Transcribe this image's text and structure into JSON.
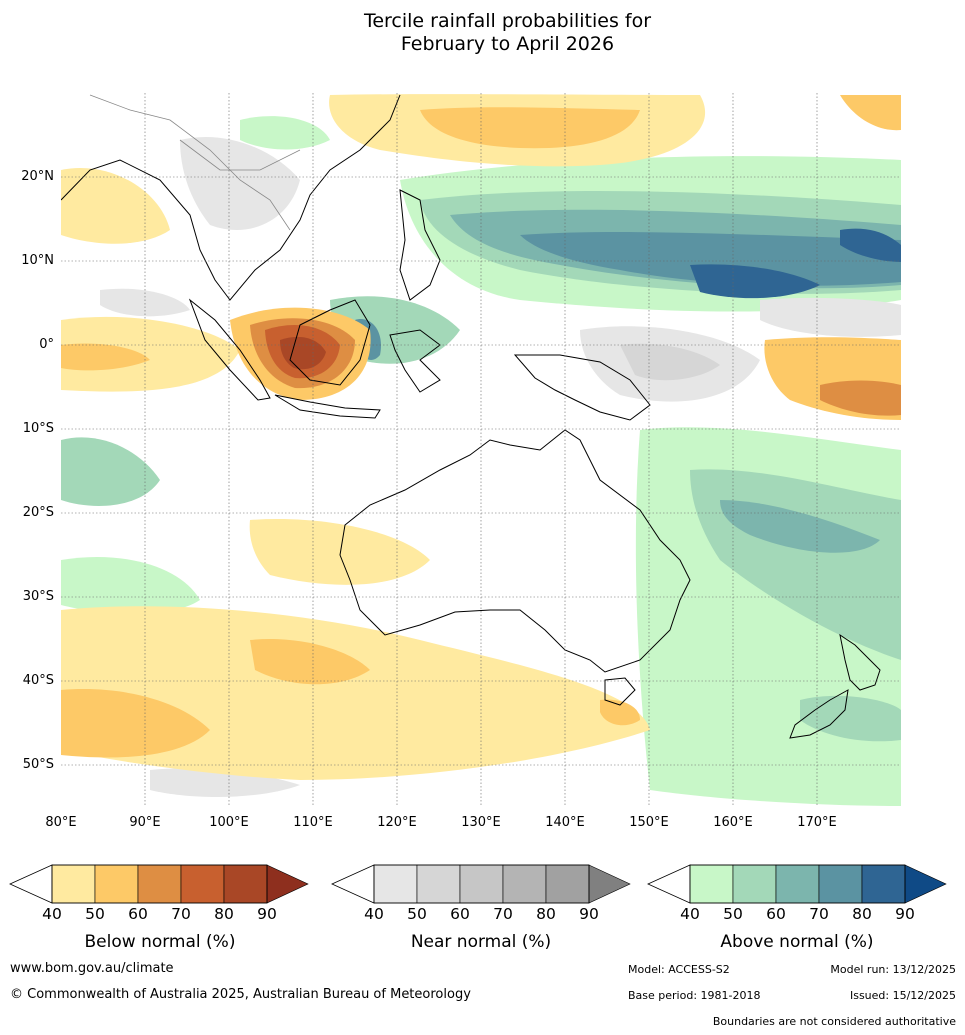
{
  "title": {
    "line1": "Tercile rainfall probabilities for",
    "line2": "February to April 2026"
  },
  "map": {
    "lat_labels": [
      "20°N",
      "10°N",
      "0°",
      "10°S",
      "20°S",
      "30°S",
      "40°S",
      "50°S"
    ],
    "lon_labels": [
      "80°E",
      "90°E",
      "100°E",
      "110°E",
      "120°E",
      "130°E",
      "140°E",
      "150°E",
      "160°E",
      "170°E"
    ]
  },
  "legends": {
    "ticks": [
      "40",
      "50",
      "60",
      "70",
      "80",
      "90"
    ],
    "below": {
      "label": "Below normal (%)",
      "colors": [
        "#ffeaa0",
        "#fdc967",
        "#de8e43",
        "#c8602f",
        "#a94726",
        "#8e2f1e"
      ]
    },
    "near": {
      "label": "Near normal (%)",
      "colors": [
        "#e6e6e6",
        "#d6d6d6",
        "#c6c6c6",
        "#b4b4b4",
        "#a1a1a1",
        "#808080"
      ]
    },
    "above": {
      "label": "Above normal (%)",
      "colors": [
        "#c8f7c8",
        "#a3d8b8",
        "#7cb5ad",
        "#5b93a2",
        "#2f6593",
        "#0f4a86"
      ]
    }
  },
  "footer": {
    "website": "www.bom.gov.au/climate",
    "copyright": "© Commonwealth of Australia 2025, Australian Bureau of Meteorology",
    "model": "Model: ACCESS-S2",
    "model_run": "Model run: 13/12/2025",
    "base_period": "Base period: 1981-2018",
    "issued": "Issued: 15/12/2025",
    "disclaimer": "Boundaries are not considered authoritative"
  }
}
